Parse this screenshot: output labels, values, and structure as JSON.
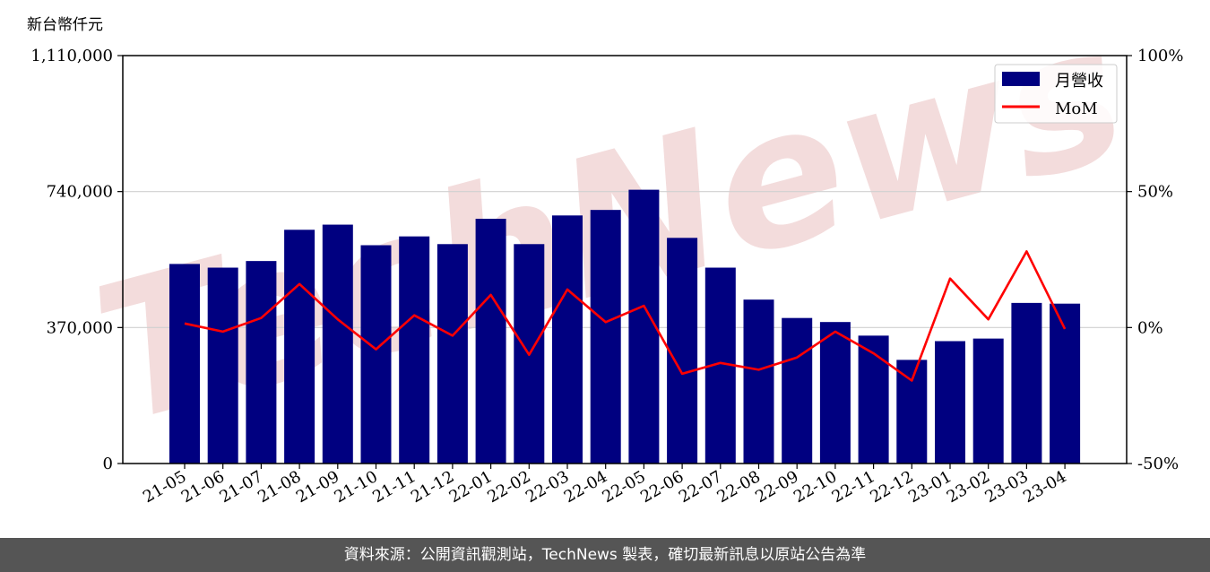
{
  "chart_data": {
    "type": "bar",
    "y_unit_label": "新台幣仟元",
    "categories": [
      "21-05",
      "21-06",
      "21-07",
      "21-08",
      "21-09",
      "21-10",
      "21-11",
      "21-12",
      "22-01",
      "22-02",
      "22-03",
      "22-04",
      "22-05",
      "22-06",
      "22-07",
      "22-08",
      "22-09",
      "22-10",
      "22-11",
      "22-12",
      "23-01",
      "23-02",
      "23-03",
      "23-04"
    ],
    "series": [
      {
        "name": "月營收",
        "axis": "left",
        "type": "bar",
        "color": "#000080",
        "values": [
          543000,
          533000,
          551000,
          636000,
          650000,
          594000,
          618000,
          597000,
          666000,
          597000,
          675000,
          690000,
          745000,
          614000,
          533000,
          446000,
          396000,
          385000,
          348000,
          282000,
          333000,
          340000,
          437000,
          435000
        ]
      },
      {
        "name": "MoM",
        "axis": "right",
        "type": "line",
        "color": "#ff0000",
        "values": [
          1.5,
          -1.5,
          3.5,
          16,
          3,
          -8,
          4.5,
          -3,
          12,
          -10,
          14,
          2,
          8,
          -17,
          -13,
          -15.5,
          -11,
          -1.5,
          -9.5,
          -19.5,
          18,
          3,
          28,
          -0.5
        ]
      }
    ],
    "left_axis": {
      "ticks": [
        "0",
        "370,000",
        "740,000",
        "1,110,000"
      ],
      "tick_values": [
        0,
        370000,
        740000,
        1110000
      ],
      "ylim": [
        0,
        1110000
      ]
    },
    "right_axis": {
      "ticks": [
        "-50%",
        "0%",
        "50%",
        "100%"
      ],
      "tick_values": [
        -50,
        0,
        50,
        100
      ],
      "ylim": [
        -50,
        100
      ]
    },
    "grid": "horizontal",
    "legend": {
      "placement": "top-right",
      "entries": [
        "月營收",
        "MoM"
      ]
    }
  },
  "watermark": {
    "text": "TechNews",
    "color": "#f2d7d7"
  },
  "footer": {
    "text": "資料來源：公開資訊觀測站，TechNews 製表，確切最新訊息以原站公告為準"
  }
}
